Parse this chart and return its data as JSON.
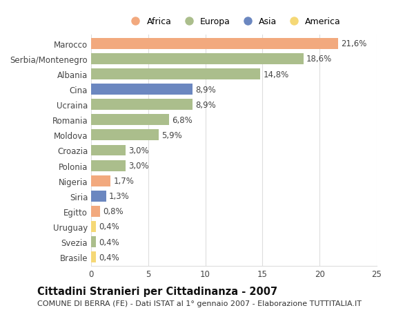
{
  "countries": [
    "Marocco",
    "Serbia/Montenegro",
    "Albania",
    "Cina",
    "Ucraina",
    "Romania",
    "Moldova",
    "Croazia",
    "Polonia",
    "Nigeria",
    "Siria",
    "Egitto",
    "Uruguay",
    "Svezia",
    "Brasile"
  ],
  "values": [
    21.6,
    18.6,
    14.8,
    8.9,
    8.9,
    6.8,
    5.9,
    3.0,
    3.0,
    1.7,
    1.3,
    0.8,
    0.4,
    0.4,
    0.4
  ],
  "labels": [
    "21,6%",
    "18,6%",
    "14,8%",
    "8,9%",
    "8,9%",
    "6,8%",
    "5,9%",
    "3,0%",
    "3,0%",
    "1,7%",
    "1,3%",
    "0,8%",
    "0,4%",
    "0,4%",
    "0,4%"
  ],
  "continents": [
    "Africa",
    "Europa",
    "Europa",
    "Asia",
    "Europa",
    "Europa",
    "Europa",
    "Europa",
    "Europa",
    "Africa",
    "Asia",
    "Africa",
    "America",
    "Europa",
    "America"
  ],
  "colors": {
    "Africa": "#F2A97E",
    "Europa": "#ABBE8C",
    "Asia": "#6B87C0",
    "America": "#F5D876"
  },
  "legend_order": [
    "Africa",
    "Europa",
    "Asia",
    "America"
  ],
  "xlim": [
    0,
    25
  ],
  "xticks": [
    0,
    5,
    10,
    15,
    20,
    25
  ],
  "title": "Cittadini Stranieri per Cittadinanza - 2007",
  "subtitle": "COMUNE DI BERRA (FE) - Dati ISTAT al 1° gennaio 2007 - Elaborazione TUTTITALIA.IT",
  "background_color": "#ffffff",
  "bar_height": 0.72,
  "grid_color": "#dddddd",
  "label_fontsize": 8.5,
  "tick_fontsize": 8.5,
  "title_fontsize": 10.5,
  "subtitle_fontsize": 8.0
}
